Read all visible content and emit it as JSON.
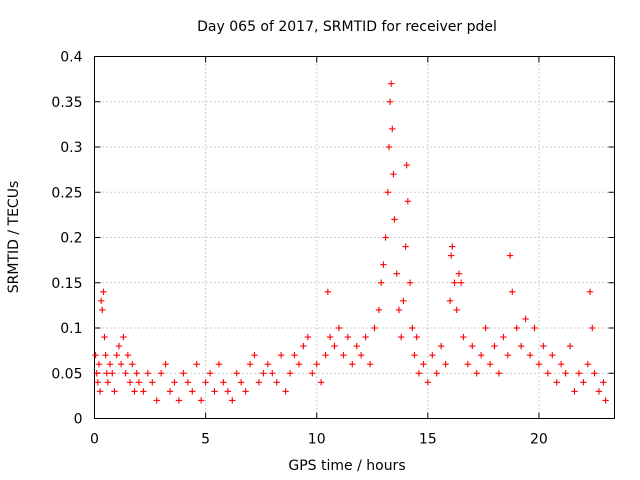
{
  "chart_data": {
    "type": "scatter",
    "title": "Day 065 of 2017, SRMTID for receiver pdel",
    "xlabel": "GPS time / hours",
    "ylabel": "SRMTID / TECUs",
    "xlim": [
      0,
      23.4
    ],
    "ylim": [
      0,
      0.4
    ],
    "grid": true,
    "x_ticks": [
      {
        "value": 0,
        "label": "0"
      },
      {
        "value": 5,
        "label": "5"
      },
      {
        "value": 10,
        "label": "10"
      },
      {
        "value": 15,
        "label": "15"
      },
      {
        "value": 20,
        "label": "20"
      }
    ],
    "y_ticks": [
      {
        "value": 0,
        "label": "0"
      },
      {
        "value": 0.05,
        "label": "0.05"
      },
      {
        "value": 0.1,
        "label": "0.1"
      },
      {
        "value": 0.15,
        "label": "0.15"
      },
      {
        "value": 0.2,
        "label": "0.2"
      },
      {
        "value": 0.25,
        "label": "0.25"
      },
      {
        "value": 0.3,
        "label": "0.3"
      },
      {
        "value": 0.35,
        "label": "0.35"
      },
      {
        "value": 0.4,
        "label": "0.4"
      }
    ],
    "series": [
      {
        "name": "SRMTID",
        "marker": "+",
        "color": "#ff0000",
        "points": [
          [
            0.05,
            0.07
          ],
          [
            0.1,
            0.05
          ],
          [
            0.15,
            0.04
          ],
          [
            0.2,
            0.06
          ],
          [
            0.25,
            0.03
          ],
          [
            0.3,
            0.13
          ],
          [
            0.35,
            0.12
          ],
          [
            0.4,
            0.14
          ],
          [
            0.45,
            0.09
          ],
          [
            0.5,
            0.07
          ],
          [
            0.55,
            0.05
          ],
          [
            0.6,
            0.04
          ],
          [
            0.7,
            0.06
          ],
          [
            0.8,
            0.05
          ],
          [
            0.9,
            0.03
          ],
          [
            1.0,
            0.07
          ],
          [
            1.1,
            0.08
          ],
          [
            1.2,
            0.06
          ],
          [
            1.3,
            0.09
          ],
          [
            1.4,
            0.05
          ],
          [
            1.5,
            0.07
          ],
          [
            1.6,
            0.04
          ],
          [
            1.7,
            0.06
          ],
          [
            1.8,
            0.03
          ],
          [
            1.9,
            0.05
          ],
          [
            2.0,
            0.04
          ],
          [
            2.2,
            0.03
          ],
          [
            2.4,
            0.05
          ],
          [
            2.6,
            0.04
          ],
          [
            2.8,
            0.02
          ],
          [
            3.0,
            0.05
          ],
          [
            3.2,
            0.06
          ],
          [
            3.4,
            0.03
          ],
          [
            3.6,
            0.04
          ],
          [
            3.8,
            0.02
          ],
          [
            4.0,
            0.05
          ],
          [
            4.2,
            0.04
          ],
          [
            4.4,
            0.03
          ],
          [
            4.6,
            0.06
          ],
          [
            4.8,
            0.02
          ],
          [
            5.0,
            0.04
          ],
          [
            5.2,
            0.05
          ],
          [
            5.4,
            0.03
          ],
          [
            5.6,
            0.06
          ],
          [
            5.8,
            0.04
          ],
          [
            6.0,
            0.03
          ],
          [
            6.2,
            0.02
          ],
          [
            6.4,
            0.05
          ],
          [
            6.6,
            0.04
          ],
          [
            6.8,
            0.03
          ],
          [
            7.0,
            0.06
          ],
          [
            7.2,
            0.07
          ],
          [
            7.4,
            0.04
          ],
          [
            7.6,
            0.05
          ],
          [
            7.8,
            0.06
          ],
          [
            8.0,
            0.05
          ],
          [
            8.2,
            0.04
          ],
          [
            8.4,
            0.07
          ],
          [
            8.6,
            0.03
          ],
          [
            8.8,
            0.05
          ],
          [
            9.0,
            0.07
          ],
          [
            9.2,
            0.06
          ],
          [
            9.4,
            0.08
          ],
          [
            9.6,
            0.09
          ],
          [
            9.8,
            0.05
          ],
          [
            10.0,
            0.06
          ],
          [
            10.2,
            0.04
          ],
          [
            10.4,
            0.07
          ],
          [
            10.5,
            0.14
          ],
          [
            10.6,
            0.09
          ],
          [
            10.8,
            0.08
          ],
          [
            11.0,
            0.1
          ],
          [
            11.2,
            0.07
          ],
          [
            11.4,
            0.09
          ],
          [
            11.6,
            0.06
          ],
          [
            11.8,
            0.08
          ],
          [
            12.0,
            0.07
          ],
          [
            12.2,
            0.09
          ],
          [
            12.4,
            0.06
          ],
          [
            12.6,
            0.1
          ],
          [
            12.8,
            0.12
          ],
          [
            12.9,
            0.15
          ],
          [
            13.0,
            0.17
          ],
          [
            13.1,
            0.2
          ],
          [
            13.2,
            0.25
          ],
          [
            13.25,
            0.3
          ],
          [
            13.3,
            0.35
          ],
          [
            13.35,
            0.37
          ],
          [
            13.4,
            0.32
          ],
          [
            13.45,
            0.27
          ],
          [
            13.5,
            0.22
          ],
          [
            13.6,
            0.16
          ],
          [
            13.7,
            0.12
          ],
          [
            13.8,
            0.09
          ],
          [
            13.9,
            0.13
          ],
          [
            14.0,
            0.19
          ],
          [
            14.05,
            0.28
          ],
          [
            14.1,
            0.24
          ],
          [
            14.2,
            0.15
          ],
          [
            14.3,
            0.1
          ],
          [
            14.4,
            0.07
          ],
          [
            14.5,
            0.09
          ],
          [
            14.6,
            0.05
          ],
          [
            14.8,
            0.06
          ],
          [
            15.0,
            0.04
          ],
          [
            15.2,
            0.07
          ],
          [
            15.4,
            0.05
          ],
          [
            15.6,
            0.08
          ],
          [
            15.8,
            0.06
          ],
          [
            16.0,
            0.13
          ],
          [
            16.05,
            0.18
          ],
          [
            16.1,
            0.19
          ],
          [
            16.2,
            0.15
          ],
          [
            16.3,
            0.12
          ],
          [
            16.4,
            0.16
          ],
          [
            16.5,
            0.15
          ],
          [
            16.6,
            0.09
          ],
          [
            16.8,
            0.06
          ],
          [
            17.0,
            0.08
          ],
          [
            17.2,
            0.05
          ],
          [
            17.4,
            0.07
          ],
          [
            17.6,
            0.1
          ],
          [
            17.8,
            0.06
          ],
          [
            18.0,
            0.08
          ],
          [
            18.2,
            0.05
          ],
          [
            18.4,
            0.09
          ],
          [
            18.6,
            0.07
          ],
          [
            18.7,
            0.18
          ],
          [
            18.8,
            0.14
          ],
          [
            19.0,
            0.1
          ],
          [
            19.2,
            0.08
          ],
          [
            19.4,
            0.11
          ],
          [
            19.6,
            0.07
          ],
          [
            19.8,
            0.1
          ],
          [
            20.0,
            0.06
          ],
          [
            20.2,
            0.08
          ],
          [
            20.4,
            0.05
          ],
          [
            20.6,
            0.07
          ],
          [
            20.8,
            0.04
          ],
          [
            21.0,
            0.06
          ],
          [
            21.2,
            0.05
          ],
          [
            21.4,
            0.08
          ],
          [
            21.6,
            0.03
          ],
          [
            21.8,
            0.05
          ],
          [
            22.0,
            0.04
          ],
          [
            22.2,
            0.06
          ],
          [
            22.3,
            0.14
          ],
          [
            22.4,
            0.1
          ],
          [
            22.5,
            0.05
          ],
          [
            22.7,
            0.03
          ],
          [
            22.9,
            0.04
          ],
          [
            23.0,
            0.02
          ]
        ]
      }
    ]
  }
}
